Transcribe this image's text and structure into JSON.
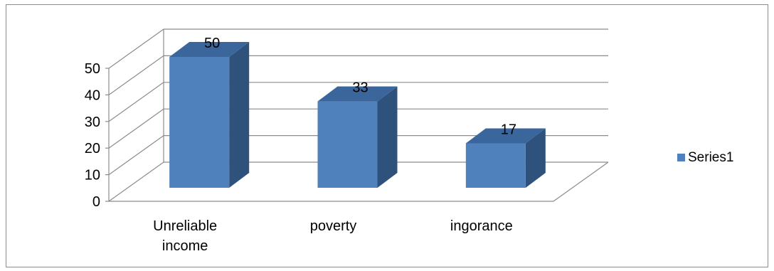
{
  "chart_data": {
    "type": "bar",
    "style": "3d-column",
    "categories": [
      "Unreliable income",
      "poverty",
      "ingorance"
    ],
    "category_lines": [
      [
        "Unreliable",
        "income"
      ],
      [
        "poverty"
      ],
      [
        "ingorance"
      ]
    ],
    "series": [
      {
        "name": "Series1",
        "values": [
          50,
          33,
          17
        ]
      }
    ],
    "data_labels": [
      "50",
      "33",
      "17"
    ],
    "yticks": [
      "0",
      "10",
      "20",
      "30",
      "40",
      "50"
    ],
    "ylim": [
      0,
      50
    ],
    "grid": true,
    "legend": "right",
    "colors": {
      "bar_front": "#4f81bd",
      "bar_side": "#2f527d",
      "bar_top": "#3a669c",
      "gridline": "#8c8c8c",
      "axis": "#8c8c8c"
    }
  }
}
